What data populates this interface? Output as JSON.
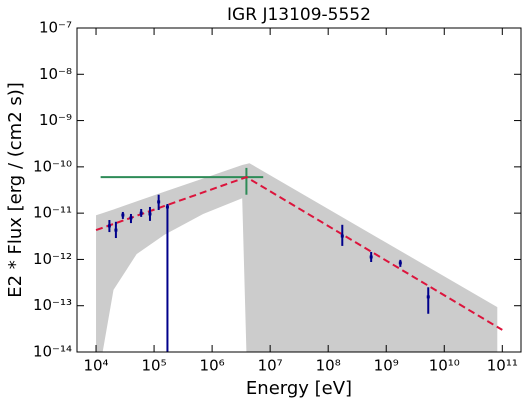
{
  "chart_data": {
    "type": "scatter",
    "title": "IGR J13109-5552",
    "xlabel": "Energy [eV]",
    "ylabel": "E2 * Flux [erg / (cm2 s)]",
    "xscale": "log",
    "yscale": "log",
    "xlim": [
      4700,
      210000000000.0
    ],
    "ylim": [
      1e-14,
      1e-07
    ],
    "xticks": [
      {
        "value": 10000.0,
        "label": "10⁴"
      },
      {
        "value": 100000.0,
        "label": "10⁵"
      },
      {
        "value": 1000000.0,
        "label": "10⁶"
      },
      {
        "value": 10000000.0,
        "label": "10⁷"
      },
      {
        "value": 100000000.0,
        "label": "10⁸"
      },
      {
        "value": 1000000000.0,
        "label": "10⁹"
      },
      {
        "value": 10000000000.0,
        "label": "10¹⁰"
      },
      {
        "value": 100000000000.0,
        "label": "10¹¹"
      }
    ],
    "yticks": [
      {
        "value": 1e-14,
        "label": "10⁻¹⁴"
      },
      {
        "value": 1e-13,
        "label": "10⁻¹³"
      },
      {
        "value": 1e-12,
        "label": "10⁻¹²"
      },
      {
        "value": 1e-11,
        "label": "10⁻¹¹"
      },
      {
        "value": 1e-10,
        "label": "10⁻¹⁰"
      },
      {
        "value": 1e-09,
        "label": "10⁻⁹"
      },
      {
        "value": 1e-08,
        "label": "10⁻⁸"
      },
      {
        "value": 1e-07,
        "label": "10⁻⁷"
      }
    ],
    "band": {
      "color": "#cccccc",
      "x": [
        10000.0,
        13000.0,
        20000.0,
        50000.0,
        150000.0,
        700000.0,
        3300000.0,
        3900000.0,
        4400000.0,
        82000000000.0
      ],
      "upper": [
        9e-12,
        1e-11,
        1.2e-11,
        1.8e-11,
        2.9e-11,
        5.6e-11,
        1.1e-10,
        1.15e-10,
        1.2e-10,
        9.3e-14
      ],
      "lower": [
        1e-14,
        1e-14,
        2.2e-13,
        1.3e-12,
        3.4e-12,
        9.6e-12,
        2.1e-11,
        1e-14,
        1e-14,
        1e-14
      ]
    },
    "model": {
      "color": "#dc143c",
      "dashed": true,
      "x": [
        10000.0,
        3900000.0,
        100000000000.0
      ],
      "y": [
        4.3e-12,
        6e-11,
        3e-14
      ]
    },
    "points": {
      "color": "#00008b",
      "x": [
        17000.0,
        22000.0,
        29000.0,
        40000.0,
        60000.0,
        85000.0,
        120000.0,
        170000.0,
        175000000.0,
        550000000.0,
        1750000000.0,
        5300000000.0
      ],
      "y": [
        5.3e-12,
        4.3e-12,
        9.1e-12,
        7.9e-12,
        1e-11,
        9.6e-12,
        1.75e-11,
        1.36e-11,
        3.2e-12,
        1.13e-12,
        8.4e-13,
        1.55e-13
      ],
      "y_low": [
        3.9e-12,
        2.9e-12,
        7.5e-12,
        6.1e-12,
        8.3e-12,
        6.8e-12,
        1.17e-11,
        1e-14,
        1.96e-12,
        8.8e-13,
        6.9e-13,
        6.7e-14
      ],
      "y_high": [
        7.1e-12,
        6.5e-12,
        1.06e-11,
        9.6e-12,
        1.23e-11,
        1.36e-11,
        2.5e-11,
        1.58e-11,
        5.6e-12,
        1.45e-12,
        9.8e-13,
        2.5e-13
      ]
    },
    "green_point": {
      "color": "#2e8b57",
      "x": 3900000.0,
      "y": 6e-11,
      "x_low": 12000.0,
      "x_high": 7600000.0,
      "y_low": 2.5e-11,
      "y_high": 9.5e-11
    }
  }
}
